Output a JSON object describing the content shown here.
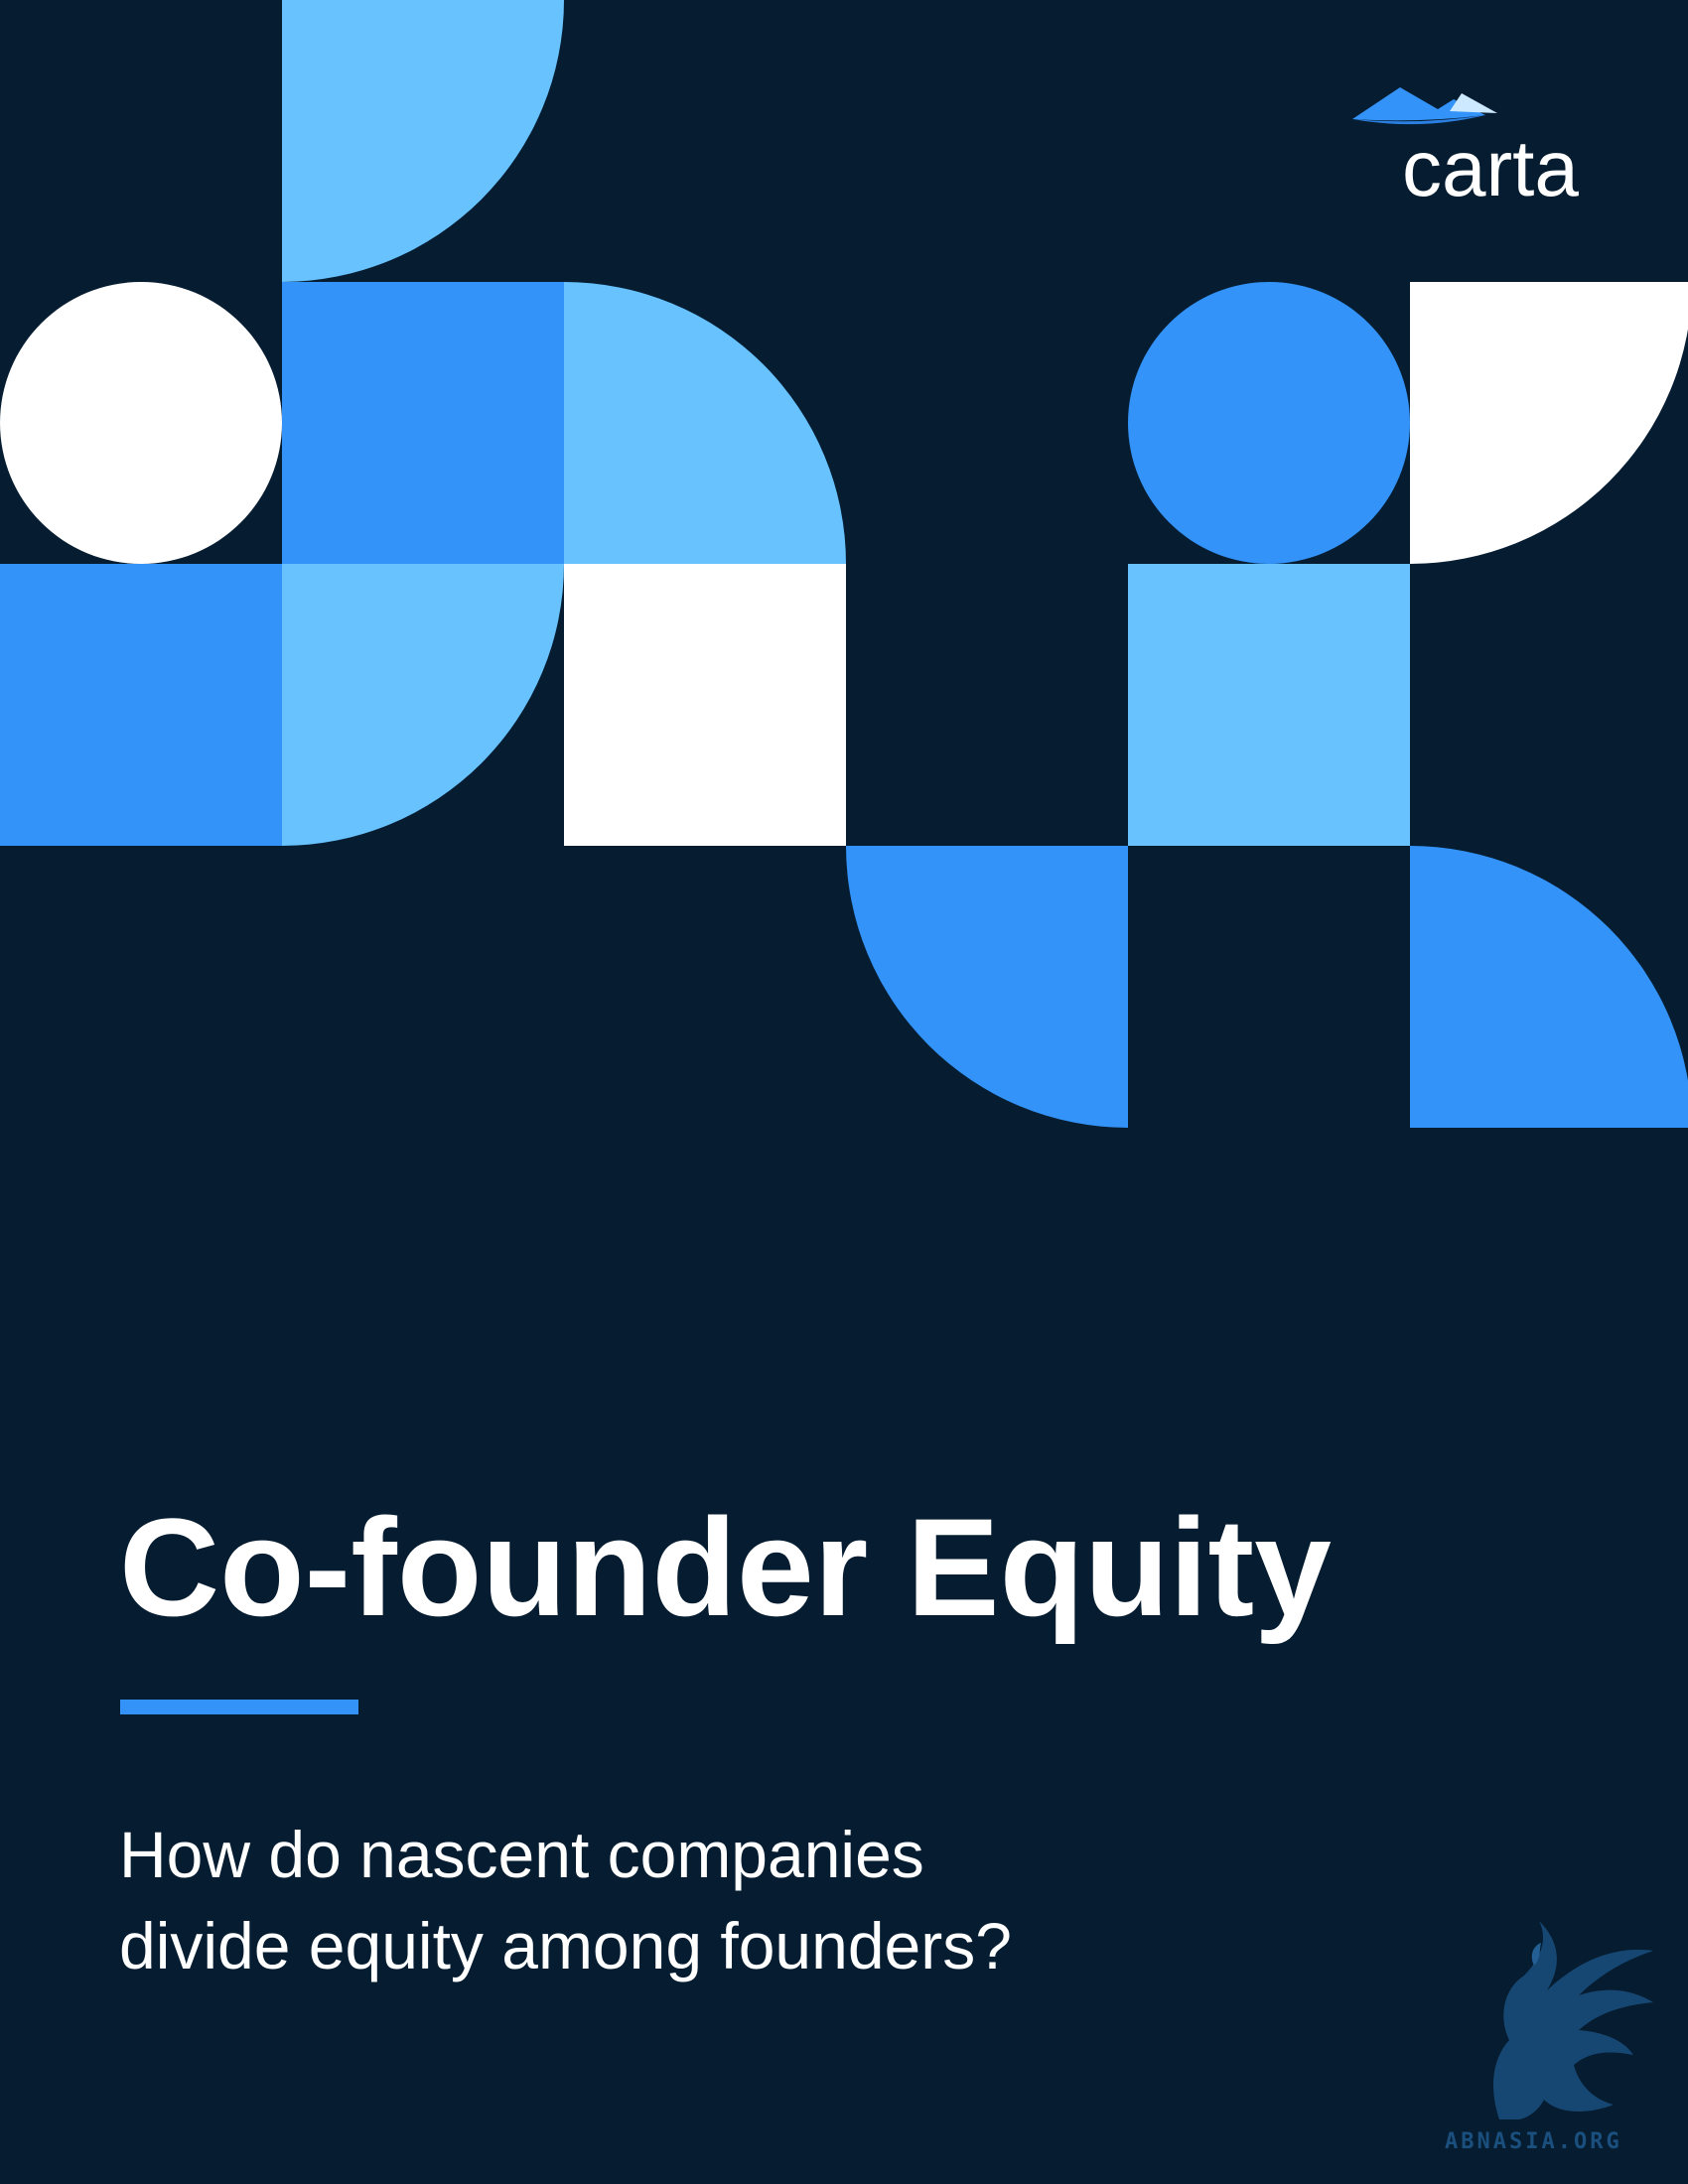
{
  "cover": {
    "brand": {
      "logo_text": "carta",
      "logo_icon": "carta-mountain-icon"
    },
    "title": "Co-founder Equity",
    "subtitle_line1": "How do nascent companies",
    "subtitle_line2": "divide equity among founders?",
    "watermark": {
      "icon": "griffin-icon",
      "text": "ABNASIA.ORG"
    },
    "colors": {
      "background": "#061d31",
      "accent_blue": "#3393f9",
      "light_blue": "#67c2fe",
      "white": "#ffffff"
    }
  }
}
